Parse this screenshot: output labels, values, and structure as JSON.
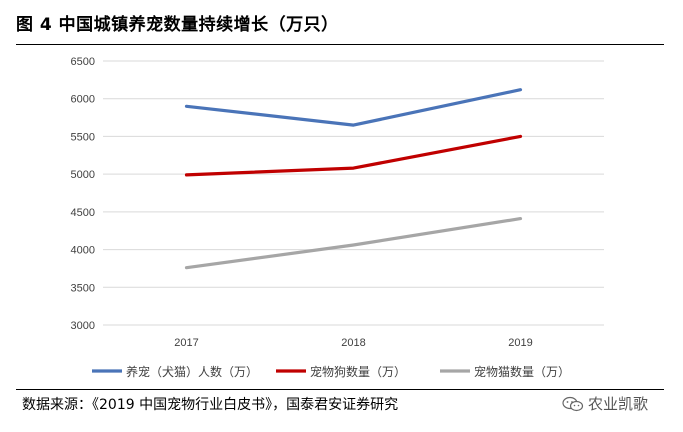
{
  "title": "图 4 中国城镇养宠数量持续增长（万只）",
  "source": "数据来源：《2019 中国宠物行业白皮书》，国泰君安证券研究",
  "watermark": {
    "text": "农业凯歌",
    "icon": "wechat-icon"
  },
  "chart_data": {
    "type": "line",
    "title": "图 4 中国城镇养宠数量持续增长（万只）",
    "categories": [
      "2017",
      "2018",
      "2019"
    ],
    "y_ticks": [
      "6500",
      "6000",
      "5500",
      "5000",
      "4500",
      "4000",
      "3500",
      "3000"
    ],
    "ylim": [
      3000,
      6500
    ],
    "grid": true,
    "legend_position": "bottom",
    "series": [
      {
        "name": "养宠（犬猫）人数（万）",
        "values": [
          5900,
          5650,
          6120
        ],
        "color": "#4a74b8"
      },
      {
        "name": "宠物狗数量（万）",
        "values": [
          4990,
          5080,
          5500
        ],
        "color": "#c00000"
      },
      {
        "name": "宠物猫数量（万）",
        "values": [
          3760,
          4060,
          4410
        ],
        "color": "#a6a6a6"
      }
    ]
  }
}
